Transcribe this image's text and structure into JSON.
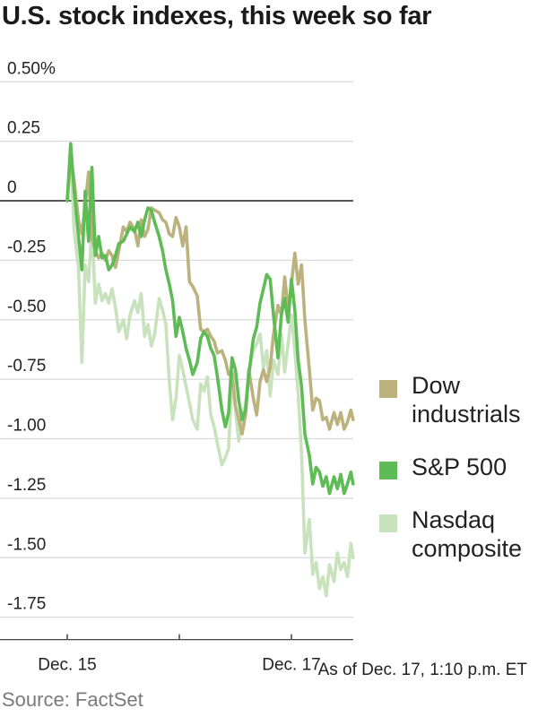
{
  "title": "U.S. stock indexes, this week so far",
  "note": "As of Dec. 17, 1:10 p.m. ET",
  "source": "Source: FactSet",
  "legend": [
    {
      "label": "Dow industrials",
      "color": "#bcb27e"
    },
    {
      "label": "S&P 500",
      "color": "#5fbb55"
    },
    {
      "label": "Nasdaq composite",
      "color": "#c8e2bd"
    }
  ],
  "colors": {
    "grid": "#d9d9d9",
    "zero_line": "#222222",
    "axis": "#444444"
  },
  "chart_data": {
    "type": "line",
    "title": "U.S. stock indexes, this week so far",
    "ylim": [
      -1.75,
      0.5
    ],
    "yticks": [
      {
        "value": 0.5,
        "label": "0.50%"
      },
      {
        "value": 0.25,
        "label": "0.25"
      },
      {
        "value": 0,
        "label": "0"
      },
      {
        "value": -0.25,
        "label": "-0.25"
      },
      {
        "value": -0.5,
        "label": "-0.50"
      },
      {
        "value": -0.75,
        "label": "-0.75"
      },
      {
        "value": -1.0,
        "label": "-1.00"
      },
      {
        "value": -1.25,
        "label": "-1.25"
      },
      {
        "value": -1.5,
        "label": "-1.50"
      },
      {
        "value": -1.75,
        "label": "-1.75"
      }
    ],
    "xlim": [
      0,
      2.55
    ],
    "xticks": [
      {
        "value": 0,
        "label": "Dec. 15"
      },
      {
        "value": 1,
        "label": ""
      },
      {
        "value": 2,
        "label": "Dec. 17"
      }
    ],
    "grid": true,
    "legend_position": "right",
    "series": [
      {
        "name": "Dow industrials",
        "color": "#bcb27e",
        "x": [
          0,
          0.03,
          0.06,
          0.1,
          0.13,
          0.16,
          0.19,
          0.22,
          0.25,
          0.28,
          0.31,
          0.34,
          0.37,
          0.4,
          0.43,
          0.46,
          0.5,
          0.53,
          0.56,
          0.6,
          0.63,
          0.66,
          0.69,
          0.72,
          0.75,
          0.78,
          0.82,
          0.85,
          0.88,
          0.91,
          0.94,
          0.97,
          1.0,
          1.03,
          1.06,
          1.09,
          1.12,
          1.16,
          1.19,
          1.22,
          1.25,
          1.28,
          1.31,
          1.34,
          1.38,
          1.41,
          1.44,
          1.47,
          1.5,
          1.53,
          1.56,
          1.59,
          1.62,
          1.66,
          1.69,
          1.72,
          1.75,
          1.78,
          1.81,
          1.84,
          1.88,
          1.91,
          1.94,
          1.97,
          2.0,
          2.03,
          2.06,
          2.09,
          2.12,
          2.16,
          2.19,
          2.22,
          2.25,
          2.28,
          2.31,
          2.34,
          2.38,
          2.41,
          2.44,
          2.47,
          2.5,
          2.53,
          2.55
        ],
        "y": [
          0.0,
          0.18,
          0.09,
          -0.08,
          -0.14,
          -0.02,
          0.12,
          -0.16,
          -0.21,
          -0.24,
          -0.22,
          -0.25,
          -0.21,
          -0.23,
          -0.28,
          -0.21,
          -0.11,
          -0.13,
          -0.09,
          -0.12,
          -0.19,
          -0.08,
          -0.15,
          -0.12,
          -0.03,
          -0.04,
          -0.05,
          -0.08,
          -0.09,
          -0.14,
          -0.15,
          -0.07,
          -0.11,
          -0.19,
          -0.11,
          -0.34,
          -0.36,
          -0.4,
          -0.54,
          -0.55,
          -0.54,
          -0.57,
          -0.59,
          -0.64,
          -0.63,
          -0.67,
          -0.73,
          -0.72,
          -0.86,
          -0.92,
          -0.98,
          -0.9,
          -0.71,
          -0.83,
          -0.9,
          -0.76,
          -0.71,
          -0.76,
          -0.7,
          -0.56,
          -0.44,
          -0.48,
          -0.32,
          -0.46,
          -0.35,
          -0.22,
          -0.35,
          -0.27,
          -0.5,
          -0.71,
          -0.88,
          -0.83,
          -0.84,
          -0.92,
          -0.91,
          -0.96,
          -0.89,
          -0.94,
          -0.89,
          -0.96,
          -0.93,
          -0.88,
          -0.92
        ]
      },
      {
        "name": "S&P 500",
        "color": "#5fbb55",
        "x": [
          0,
          0.03,
          0.06,
          0.1,
          0.13,
          0.16,
          0.19,
          0.22,
          0.25,
          0.28,
          0.31,
          0.34,
          0.37,
          0.4,
          0.43,
          0.46,
          0.5,
          0.53,
          0.56,
          0.6,
          0.63,
          0.66,
          0.69,
          0.72,
          0.75,
          0.78,
          0.82,
          0.85,
          0.88,
          0.91,
          0.94,
          0.97,
          1.0,
          1.03,
          1.06,
          1.09,
          1.12,
          1.16,
          1.19,
          1.22,
          1.25,
          1.28,
          1.31,
          1.34,
          1.38,
          1.41,
          1.44,
          1.47,
          1.5,
          1.53,
          1.56,
          1.59,
          1.62,
          1.66,
          1.69,
          1.72,
          1.75,
          1.78,
          1.81,
          1.84,
          1.88,
          1.91,
          1.94,
          1.97,
          2.0,
          2.03,
          2.06,
          2.09,
          2.12,
          2.16,
          2.19,
          2.22,
          2.25,
          2.28,
          2.31,
          2.34,
          2.38,
          2.41,
          2.44,
          2.47,
          2.5,
          2.53,
          2.55
        ],
        "y": [
          0.0,
          0.24,
          0.05,
          -0.15,
          -0.29,
          0.04,
          -0.17,
          0.14,
          -0.23,
          -0.15,
          -0.24,
          -0.23,
          -0.29,
          -0.27,
          -0.23,
          -0.18,
          -0.17,
          -0.14,
          -0.11,
          -0.13,
          -0.09,
          -0.15,
          -0.08,
          -0.03,
          -0.04,
          -0.09,
          -0.15,
          -0.21,
          -0.29,
          -0.35,
          -0.42,
          -0.57,
          -0.49,
          -0.55,
          -0.62,
          -0.67,
          -0.73,
          -0.68,
          -0.58,
          -0.55,
          -0.57,
          -0.62,
          -0.65,
          -0.74,
          -0.88,
          -0.95,
          -0.89,
          -0.66,
          -0.71,
          -0.84,
          -0.92,
          -0.88,
          -0.73,
          -0.58,
          -0.53,
          -0.43,
          -0.37,
          -0.31,
          -0.33,
          -0.48,
          -0.66,
          -0.48,
          -0.41,
          -0.51,
          -0.33,
          -0.46,
          -0.67,
          -0.78,
          -0.98,
          -1.07,
          -1.19,
          -1.12,
          -1.14,
          -1.2,
          -1.16,
          -1.23,
          -1.16,
          -1.21,
          -1.15,
          -1.23,
          -1.19,
          -1.14,
          -1.19
        ]
      },
      {
        "name": "Nasdaq composite",
        "color": "#c8e2bd",
        "x": [
          0,
          0.03,
          0.06,
          0.1,
          0.13,
          0.16,
          0.19,
          0.22,
          0.25,
          0.28,
          0.31,
          0.34,
          0.37,
          0.4,
          0.43,
          0.46,
          0.5,
          0.53,
          0.56,
          0.6,
          0.63,
          0.66,
          0.69,
          0.72,
          0.75,
          0.78,
          0.82,
          0.85,
          0.88,
          0.91,
          0.94,
          0.97,
          1.0,
          1.03,
          1.06,
          1.09,
          1.12,
          1.16,
          1.19,
          1.22,
          1.25,
          1.28,
          1.31,
          1.34,
          1.38,
          1.41,
          1.44,
          1.47,
          1.5,
          1.53,
          1.56,
          1.59,
          1.62,
          1.66,
          1.69,
          1.72,
          1.75,
          1.78,
          1.81,
          1.84,
          1.88,
          1.91,
          1.94,
          1.97,
          2.0,
          2.03,
          2.06,
          2.09,
          2.12,
          2.16,
          2.19,
          2.22,
          2.25,
          2.28,
          2.31,
          2.34,
          2.38,
          2.41,
          2.44,
          2.47,
          2.5,
          2.53,
          2.55
        ],
        "y": [
          0.0,
          0.22,
          -0.12,
          -0.28,
          -0.68,
          -0.27,
          -0.34,
          -0.1,
          -0.43,
          -0.35,
          -0.42,
          -0.39,
          -0.43,
          -0.37,
          -0.45,
          -0.55,
          -0.5,
          -0.58,
          -0.48,
          -0.42,
          -0.47,
          -0.39,
          -0.57,
          -0.52,
          -0.61,
          -0.56,
          -0.41,
          -0.46,
          -0.52,
          -0.76,
          -0.92,
          -0.83,
          -0.65,
          -0.71,
          -0.78,
          -0.85,
          -0.92,
          -0.96,
          -0.77,
          -0.8,
          -0.74,
          -0.9,
          -0.95,
          -1.02,
          -1.11,
          -1.08,
          -1.04,
          -0.74,
          -0.88,
          -1.01,
          -0.9,
          -0.86,
          -0.72,
          -0.63,
          -0.6,
          -0.56,
          -0.7,
          -0.63,
          -0.82,
          -0.67,
          -0.73,
          -0.56,
          -0.72,
          -0.6,
          -0.48,
          -0.63,
          -0.81,
          -1.06,
          -1.48,
          -1.34,
          -1.57,
          -1.52,
          -1.63,
          -1.58,
          -1.66,
          -1.53,
          -1.6,
          -1.48,
          -1.55,
          -1.52,
          -1.58,
          -1.44,
          -1.5
        ]
      }
    ]
  }
}
